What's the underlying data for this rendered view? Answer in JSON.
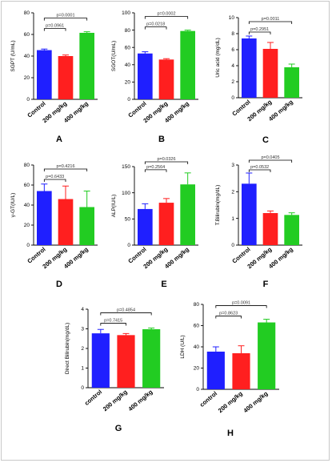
{
  "colors": {
    "blue": "#1f1fff",
    "red": "#ff1f1f",
    "green": "#22cc22",
    "err": "#000000"
  },
  "chart_data": [
    {
      "panel": "A",
      "type": "bar",
      "categories": [
        "Control",
        "200 mg/kg",
        "400 mg/kg"
      ],
      "values": [
        45.5,
        40,
        61.5
      ],
      "errors": [
        1,
        1,
        1
      ],
      "ylabel": "SGPT (U/mL)",
      "ylim": [
        0,
        80
      ],
      "yticks": [
        0,
        20,
        40,
        60,
        80
      ],
      "brackets": [
        {
          "from": 0,
          "to": 1,
          "label": "p=0.0961"
        },
        {
          "from": 0,
          "to": 2,
          "label": "p=0.0001"
        }
      ]
    },
    {
      "panel": "B",
      "type": "bar",
      "categories": [
        "Control",
        "200 mg/kg",
        "400 mg/kg"
      ],
      "values": [
        53,
        46,
        79
      ],
      "errors": [
        2,
        1,
        1
      ],
      "ylabel": "SGOT(U/mL)",
      "ylim": [
        0,
        100
      ],
      "yticks": [
        0,
        20,
        40,
        60,
        80,
        100
      ],
      "brackets": [
        {
          "from": 0,
          "to": 1,
          "label": "p=0.0218"
        },
        {
          "from": 0,
          "to": 2,
          "label": "p=0.0002"
        }
      ]
    },
    {
      "panel": "C",
      "type": "bar",
      "categories": [
        "Control",
        "200 mg/kg",
        "400 mg/kg"
      ],
      "values": [
        7.4,
        6.1,
        3.8
      ],
      "errors": [
        0.3,
        0.8,
        0.4
      ],
      "ylabel": "Uric acid (mg/dL)",
      "ylim": [
        0,
        10
      ],
      "yticks": [
        0,
        2,
        4,
        6,
        8,
        10
      ],
      "brackets": [
        {
          "from": 0,
          "to": 1,
          "label": "p=0.2951"
        },
        {
          "from": 0,
          "to": 2,
          "label": "p=0.0011"
        }
      ]
    },
    {
      "panel": "D",
      "type": "bar",
      "categories": [
        "Control",
        "200 mg/kg",
        "400 mg/kg"
      ],
      "values": [
        54,
        46,
        38
      ],
      "errors": [
        7,
        13,
        16
      ],
      "ylabel": "γ-GT(IU/L)",
      "ylim": [
        0,
        80
      ],
      "yticks": [
        0,
        20,
        40,
        60,
        80
      ],
      "brackets": [
        {
          "from": 0,
          "to": 1,
          "label": "p=0.6433"
        },
        {
          "from": 0,
          "to": 2,
          "label": "p=0.4216"
        }
      ]
    },
    {
      "panel": "E",
      "type": "bar",
      "categories": [
        "Control",
        "200 mg/kg",
        "400 mg/kg"
      ],
      "values": [
        69,
        81,
        116
      ],
      "errors": [
        10,
        8,
        22
      ],
      "ylabel": "ALP(IU/L)",
      "ylim": [
        0,
        150
      ],
      "yticks": [
        0,
        50,
        100,
        150
      ],
      "brackets": [
        {
          "from": 0,
          "to": 1,
          "label": "p=0.2564"
        },
        {
          "from": 0,
          "to": 2,
          "label": "p=0.0326"
        }
      ]
    },
    {
      "panel": "F",
      "type": "bar",
      "categories": [
        "Control",
        "200 mg/kg",
        "400 mg/kg"
      ],
      "values": [
        2.3,
        1.2,
        1.13
      ],
      "errors": [
        0.4,
        0.08,
        0.08
      ],
      "ylabel": "T.Bilirubin(mg/dL)",
      "ylim": [
        0,
        3
      ],
      "yticks": [
        0,
        1,
        2,
        3
      ],
      "brackets": [
        {
          "from": 0,
          "to": 1,
          "label": "p=0.0532"
        },
        {
          "from": 0,
          "to": 2,
          "label": "p=0.0405"
        }
      ]
    },
    {
      "panel": "G",
      "type": "bar",
      "categories": [
        "control",
        "200 mg/kg",
        "400 mg/kg"
      ],
      "values": [
        2.77,
        2.68,
        2.98
      ],
      "errors": [
        0.2,
        0.08,
        0.06
      ],
      "ylabel": "Direct Bilirubin(mg/dL)",
      "ylim": [
        0,
        4
      ],
      "yticks": [
        0,
        1,
        2,
        3,
        4
      ],
      "brackets": [
        {
          "from": 0,
          "to": 1,
          "label": "p=0.7415"
        },
        {
          "from": 0,
          "to": 2,
          "label": "p=0.4854"
        }
      ]
    },
    {
      "panel": "H",
      "type": "bar",
      "categories": [
        "control",
        "200 mg/kg",
        "400 mg/kg"
      ],
      "values": [
        35.5,
        34,
        63
      ],
      "errors": [
        4.5,
        7,
        3
      ],
      "ylabel": "LDH (U/L)",
      "ylim": [
        0,
        80
      ],
      "yticks": [
        0,
        20,
        40,
        60,
        80
      ],
      "brackets": [
        {
          "from": 0,
          "to": 1,
          "label": "p=0.8623"
        },
        {
          "from": 0,
          "to": 2,
          "label": "p=0.0091"
        }
      ]
    }
  ]
}
